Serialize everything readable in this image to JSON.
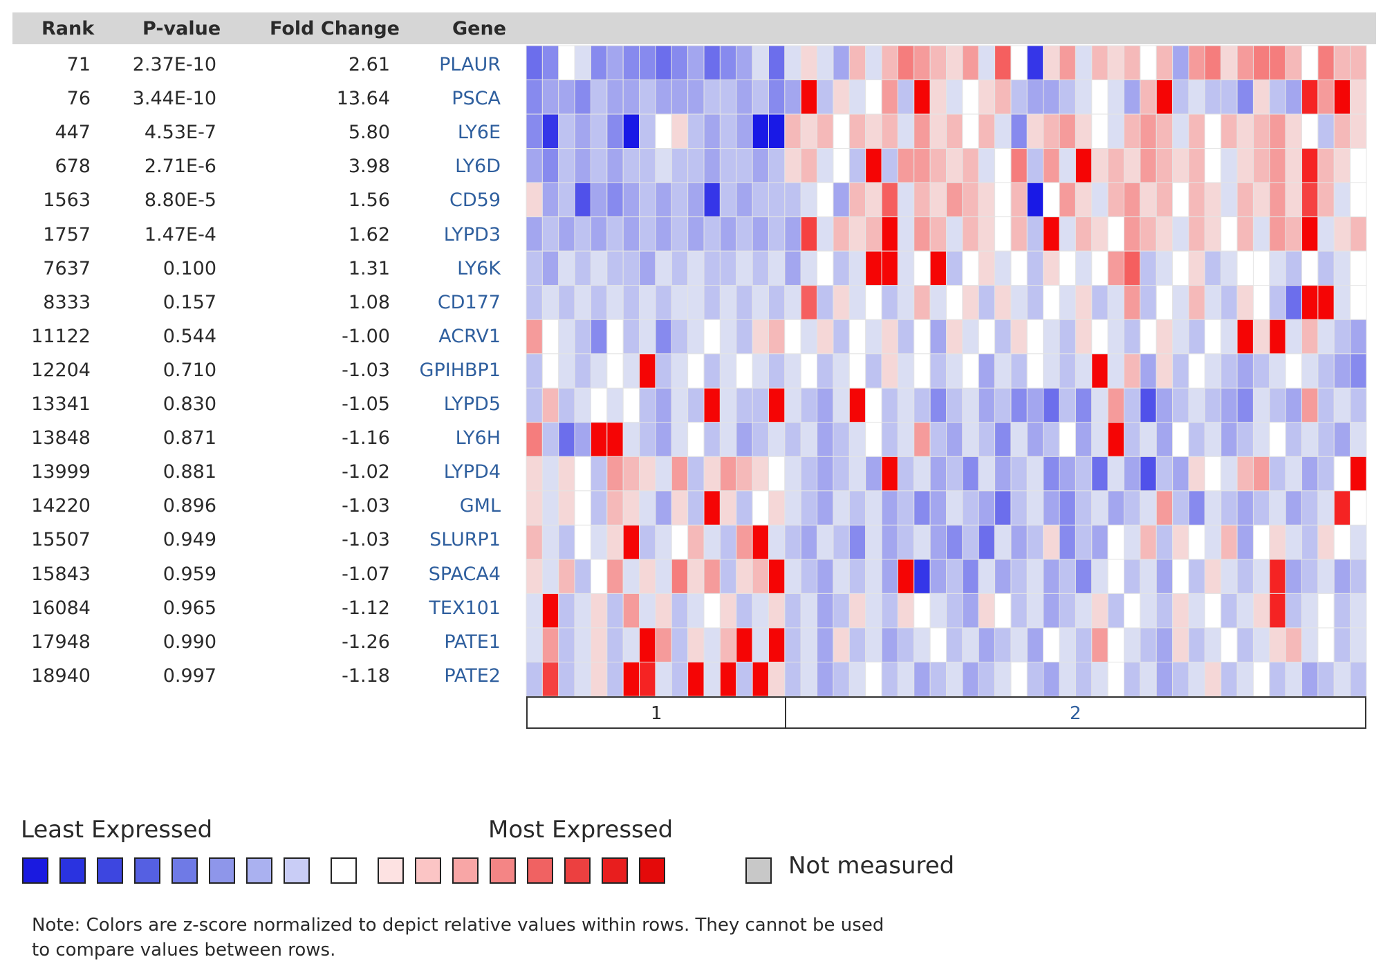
{
  "table": {
    "headers": {
      "rank": "Rank",
      "pvalue": "P-value",
      "fold": "Fold Change",
      "gene": "Gene"
    },
    "rows": [
      {
        "rank": "71",
        "pvalue": "2.37E-10",
        "fold": "2.61",
        "gene": "PLAUR"
      },
      {
        "rank": "76",
        "pvalue": "3.44E-10",
        "fold": "13.64",
        "gene": "PSCA"
      },
      {
        "rank": "447",
        "pvalue": "4.53E-7",
        "fold": "5.80",
        "gene": "LY6E"
      },
      {
        "rank": "678",
        "pvalue": "2.71E-6",
        "fold": "3.98",
        "gene": "LY6D"
      },
      {
        "rank": "1563",
        "pvalue": "8.80E-5",
        "fold": "1.56",
        "gene": "CD59"
      },
      {
        "rank": "1757",
        "pvalue": "1.47E-4",
        "fold": "1.62",
        "gene": "LYPD3"
      },
      {
        "rank": "7637",
        "pvalue": "0.100",
        "fold": "1.31",
        "gene": "LY6K"
      },
      {
        "rank": "8333",
        "pvalue": "0.157",
        "fold": "1.08",
        "gene": "CD177"
      },
      {
        "rank": "11122",
        "pvalue": "0.544",
        "fold": "-1.00",
        "gene": "ACRV1"
      },
      {
        "rank": "12204",
        "pvalue": "0.710",
        "fold": "-1.03",
        "gene": "GPIHBP1"
      },
      {
        "rank": "13341",
        "pvalue": "0.830",
        "fold": "-1.05",
        "gene": "LYPD5"
      },
      {
        "rank": "13848",
        "pvalue": "0.871",
        "fold": "-1.16",
        "gene": "LY6H"
      },
      {
        "rank": "13999",
        "pvalue": "0.881",
        "fold": "-1.02",
        "gene": "LYPD4"
      },
      {
        "rank": "14220",
        "pvalue": "0.896",
        "fold": "-1.03",
        "gene": "GML"
      },
      {
        "rank": "15507",
        "pvalue": "0.949",
        "fold": "-1.03",
        "gene": "SLURP1"
      },
      {
        "rank": "15843",
        "pvalue": "0.959",
        "fold": "-1.07",
        "gene": "SPACA4"
      },
      {
        "rank": "16084",
        "pvalue": "0.965",
        "fold": "-1.12",
        "gene": "TEX101"
      },
      {
        "rank": "17948",
        "pvalue": "0.990",
        "fold": "-1.26",
        "gene": "PATE1"
      },
      {
        "rank": "18940",
        "pvalue": "0.997",
        "fold": "-1.18",
        "gene": "PATE2"
      }
    ]
  },
  "groups": [
    {
      "label": "1",
      "columns": 16
    },
    {
      "label": "2",
      "columns": 36
    }
  ],
  "legend": {
    "least": "Least Expressed",
    "most": "Most Expressed",
    "not_measured": "Not measured",
    "colors": [
      "#1a1ae0",
      "#2a33e0",
      "#3d46e0",
      "#5560e2",
      "#6f7ae6",
      "#8e96ea",
      "#aab1f0",
      "#c9cdf6",
      "#ffffff",
      "#fde2e2",
      "#fbc5c5",
      "#f8a6a6",
      "#f48585",
      "#f06262",
      "#ec4040",
      "#e81e1e",
      "#e40a0a"
    ],
    "not_measured_color": "#c8c8c8"
  },
  "note": {
    "line1": "Note: Colors are z-score normalized to depict relative values within rows. They cannot be used",
    "line2": "to compare values between rows."
  },
  "chart_data": {
    "type": "heatmap",
    "rows": [
      "PLAUR",
      "PSCA",
      "LY6E",
      "LY6D",
      "CD59",
      "LYPD3",
      "LY6K",
      "CD177",
      "ACRV1",
      "GPIHBP1",
      "LYPD5",
      "LY6H",
      "LYPD4",
      "GML",
      "SLURP1",
      "SPACA4",
      "TEX101",
      "PATE1",
      "PATE2"
    ],
    "column_groups": [
      {
        "label": "1",
        "n": 16
      },
      {
        "label": "2",
        "n": 36
      }
    ],
    "scale": "z-score, -8 (least expressed, blue) to +8 (most expressed, red)",
    "values": [
      [
        -5,
        -4,
        0,
        -1,
        -4,
        -3,
        -4,
        -4,
        -5,
        -4,
        -3,
        -5,
        -4,
        -3,
        -1,
        -5,
        -1,
        1,
        -1,
        -3,
        2,
        -1,
        2,
        4,
        3,
        2,
        1,
        3,
        -1,
        5,
        0,
        -7,
        1,
        3,
        -1,
        2,
        1,
        2,
        0,
        2,
        -3,
        3,
        4,
        1,
        3,
        4,
        4,
        2,
        0,
        4,
        2,
        2
      ],
      [
        -4,
        -3,
        -3,
        -4,
        -2,
        -3,
        -3,
        -2,
        -3,
        -3,
        -3,
        -2,
        -2,
        -3,
        -2,
        -4,
        -3,
        8,
        -2,
        1,
        -1,
        0,
        3,
        -2,
        8,
        1,
        -1,
        0,
        1,
        2,
        -2,
        -3,
        -3,
        -2,
        -1,
        0,
        -1,
        -3,
        2,
        8,
        -2,
        -1,
        -2,
        -2,
        -4,
        1,
        -2,
        -3,
        7,
        3,
        8,
        1
      ],
      [
        -4,
        -7,
        -2,
        -3,
        -2,
        -4,
        -8,
        -2,
        0,
        1,
        -2,
        -3,
        -2,
        -3,
        -8,
        -8,
        2,
        1,
        2,
        0,
        2,
        1,
        2,
        -1,
        3,
        1,
        2,
        0,
        2,
        -1,
        -4,
        1,
        2,
        3,
        1,
        0,
        -1,
        2,
        3,
        2,
        -1,
        2,
        0,
        2,
        1,
        2,
        3,
        1,
        0,
        -2,
        2,
        1
      ],
      [
        -3,
        -4,
        -2,
        -3,
        -2,
        -3,
        -2,
        -2,
        -1,
        -2,
        -2,
        -3,
        -2,
        -2,
        -3,
        -2,
        1,
        2,
        -1,
        0,
        -2,
        8,
        -2,
        3,
        3,
        2,
        1,
        2,
        -1,
        0,
        4,
        -2,
        3,
        -1,
        8,
        1,
        2,
        1,
        3,
        2,
        1,
        2,
        0,
        -1,
        1,
        2,
        3,
        1,
        7,
        2,
        1,
        0
      ],
      [
        1,
        -3,
        -2,
        -6,
        -3,
        -4,
        -3,
        -2,
        -3,
        -2,
        -3,
        -7,
        -2,
        -3,
        -2,
        -2,
        -2,
        -1,
        0,
        -3,
        2,
        1,
        5,
        -1,
        2,
        1,
        3,
        2,
        1,
        0,
        2,
        -8,
        0,
        3,
        1,
        -1,
        2,
        3,
        1,
        2,
        0,
        2,
        1,
        -1,
        2,
        1,
        3,
        1,
        6,
        2,
        -1,
        0
      ],
      [
        -3,
        -2,
        -3,
        -2,
        -3,
        -2,
        -3,
        -2,
        -3,
        -2,
        -3,
        -2,
        -3,
        -2,
        -3,
        -2,
        -3,
        6,
        -1,
        2,
        1,
        2,
        8,
        -1,
        3,
        2,
        -1,
        2,
        1,
        0,
        2,
        -2,
        8,
        -1,
        2,
        1,
        0,
        3,
        2,
        1,
        -1,
        2,
        1,
        0,
        2,
        -1,
        3,
        2,
        8,
        -1,
        1,
        2
      ],
      [
        -2,
        -3,
        -1,
        -2,
        -1,
        -2,
        -2,
        -3,
        -1,
        -2,
        -1,
        -2,
        -2,
        -1,
        -2,
        -1,
        -3,
        -1,
        0,
        -2,
        -1,
        8,
        8,
        -1,
        0,
        8,
        -2,
        0,
        1,
        -1,
        0,
        -2,
        1,
        0,
        -1,
        0,
        3,
        5,
        -2,
        -1,
        0,
        1,
        -2,
        -1,
        0,
        0,
        -1,
        -2,
        0,
        -2,
        -1,
        0
      ],
      [
        -2,
        -1,
        -2,
        -1,
        -2,
        -1,
        -2,
        -1,
        -2,
        -1,
        -1,
        -2,
        -1,
        -2,
        -1,
        -2,
        -1,
        5,
        -2,
        1,
        -1,
        0,
        -2,
        -1,
        2,
        -1,
        0,
        1,
        -2,
        1,
        -1,
        -2,
        0,
        -1,
        1,
        -2,
        -1,
        3,
        -2,
        0,
        -1,
        2,
        -1,
        -2,
        1,
        0,
        -2,
        -5,
        8,
        8,
        -1,
        0
      ],
      [
        3,
        0,
        -1,
        -2,
        -4,
        0,
        -2,
        -1,
        -4,
        -2,
        -1,
        0,
        -1,
        -2,
        1,
        2,
        0,
        -1,
        1,
        -2,
        0,
        -1,
        1,
        -2,
        0,
        -3,
        1,
        -1,
        0,
        -2,
        1,
        0,
        -1,
        -2,
        1,
        0,
        -1,
        -2,
        0,
        1,
        -1,
        -2,
        0,
        -1,
        8,
        1,
        8,
        -1,
        2,
        -1,
        -2,
        -3
      ],
      [
        -2,
        0,
        -1,
        -2,
        -1,
        0,
        -1,
        8,
        -2,
        -1,
        0,
        -2,
        -1,
        0,
        -1,
        -2,
        -1,
        0,
        -2,
        -1,
        0,
        -2,
        1,
        -1,
        0,
        -2,
        -1,
        0,
        -3,
        -1,
        -2,
        0,
        -1,
        -2,
        -1,
        8,
        -1,
        2,
        -3,
        1,
        -2,
        0,
        -1,
        -2,
        -3,
        -2,
        -1,
        0,
        -1,
        -2,
        -3,
        -4
      ],
      [
        -2,
        2,
        -2,
        -1,
        0,
        -1,
        0,
        -2,
        -3,
        -1,
        -2,
        8,
        -1,
        -2,
        -2,
        8,
        -1,
        -2,
        -3,
        -1,
        8,
        0,
        -2,
        -1,
        -2,
        -4,
        -2,
        -1,
        -3,
        -2,
        -4,
        -3,
        -5,
        -2,
        -4,
        -1,
        3,
        -2,
        -6,
        -3,
        -2,
        -1,
        -2,
        -3,
        -4,
        -1,
        -2,
        -3,
        3,
        -2,
        -1,
        -2
      ],
      [
        4,
        -2,
        -5,
        -3,
        8,
        8,
        -1,
        -2,
        -3,
        -1,
        0,
        -2,
        -1,
        -3,
        -2,
        -1,
        -2,
        -1,
        -3,
        -2,
        -1,
        0,
        -2,
        -1,
        3,
        -2,
        -3,
        -1,
        -2,
        -4,
        -1,
        -3,
        -2,
        0,
        -3,
        -1,
        8,
        -2,
        -1,
        -3,
        0,
        -2,
        -1,
        -3,
        -2,
        -1,
        0,
        -2,
        -1,
        -2,
        -3,
        -1
      ],
      [
        1,
        -1,
        1,
        0,
        -2,
        3,
        2,
        1,
        -1,
        3,
        -2,
        1,
        3,
        2,
        1,
        0,
        -1,
        -2,
        -3,
        -2,
        -1,
        -3,
        8,
        -2,
        -1,
        -3,
        -2,
        -4,
        -1,
        -3,
        -2,
        -1,
        -4,
        -3,
        -2,
        -5,
        -1,
        -3,
        -6,
        -2,
        -3,
        1,
        0,
        -1,
        2,
        3,
        -2,
        -1,
        -3,
        -2,
        0,
        8
      ],
      [
        1,
        -1,
        1,
        0,
        -2,
        2,
        1,
        -1,
        -3,
        1,
        -2,
        8,
        1,
        -2,
        0,
        1,
        -1,
        -2,
        -3,
        -1,
        -2,
        -1,
        -3,
        -2,
        -4,
        -3,
        -1,
        -2,
        -3,
        -5,
        -2,
        -1,
        -3,
        -4,
        -2,
        -1,
        -3,
        -2,
        -1,
        3,
        -2,
        -4,
        -1,
        -2,
        -3,
        -2,
        -1,
        -3,
        -2,
        -1,
        7,
        0
      ],
      [
        2,
        -1,
        -2,
        0,
        -1,
        1,
        8,
        -2,
        -1,
        0,
        2,
        -1,
        -2,
        3,
        8,
        -1,
        -2,
        -3,
        -1,
        -2,
        -4,
        -1,
        -3,
        -2,
        -1,
        -3,
        -4,
        -2,
        -5,
        -1,
        -3,
        -2,
        1,
        -4,
        -2,
        -3,
        0,
        -1,
        2,
        -2,
        1,
        0,
        -1,
        2,
        -3,
        0,
        1,
        -1,
        -2,
        1,
        0,
        -1
      ],
      [
        1,
        -1,
        2,
        -2,
        0,
        3,
        -1,
        1,
        -1,
        4,
        1,
        3,
        -2,
        1,
        2,
        8,
        -1,
        -2,
        -3,
        -1,
        -2,
        -1,
        -3,
        8,
        -7,
        -3,
        -2,
        -4,
        -1,
        -3,
        -2,
        -1,
        -3,
        -2,
        -4,
        -1,
        0,
        -2,
        -1,
        -3,
        0,
        -2,
        1,
        -1,
        -2,
        -1,
        7,
        -3,
        -2,
        -1,
        -3,
        -2
      ],
      [
        -1,
        8,
        -2,
        -1,
        1,
        -2,
        3,
        -1,
        1,
        -2,
        -1,
        0,
        1,
        -2,
        -1,
        1,
        -2,
        -1,
        -3,
        -2,
        1,
        -1,
        -2,
        1,
        0,
        -1,
        -2,
        -3,
        1,
        0,
        -2,
        -1,
        -3,
        -2,
        -1,
        1,
        -2,
        0,
        -1,
        -2,
        1,
        -1,
        0,
        -2,
        -1,
        1,
        7,
        -2,
        -1,
        0,
        -2,
        -1
      ],
      [
        -1,
        3,
        -2,
        -1,
        1,
        -2,
        -1,
        8,
        3,
        -2,
        1,
        -1,
        2,
        8,
        -1,
        8,
        -2,
        -1,
        -3,
        1,
        -2,
        -1,
        -3,
        -2,
        -1,
        0,
        -2,
        -1,
        -3,
        -2,
        -1,
        -3,
        0,
        -1,
        -2,
        3,
        0,
        -1,
        -2,
        -3,
        1,
        -2,
        -1,
        0,
        -2,
        -1,
        1,
        2,
        -1,
        0,
        -2,
        -1
      ],
      [
        -2,
        6,
        -2,
        -1,
        1,
        -2,
        8,
        7,
        -1,
        -2,
        8,
        -1,
        8,
        -2,
        8,
        1,
        -2,
        -1,
        -3,
        -2,
        -1,
        0,
        -2,
        -1,
        -3,
        -2,
        -1,
        -3,
        -2,
        -1,
        0,
        -2,
        -3,
        -1,
        -2,
        -1,
        0,
        -2,
        -1,
        -3,
        -2,
        -1,
        1,
        -2,
        -1,
        0,
        -2,
        -1,
        -3,
        -2,
        -1,
        -2
      ]
    ]
  }
}
